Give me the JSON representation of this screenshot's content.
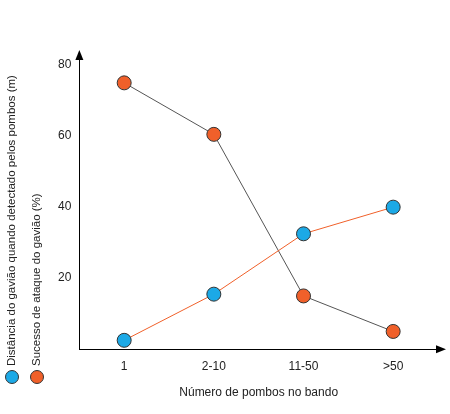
{
  "chart_data": {
    "type": "line",
    "x_label": "Número de pombos no bando",
    "categories": [
      "1",
      "2-10",
      "11-50",
      ">50"
    ],
    "series": [
      {
        "name": "Distância do gavião quando detectado pelos pombos (m)",
        "color": "#1ca9e6",
        "marker": "circle",
        "values": [
          2.5,
          15.5,
          32.5,
          40
        ]
      },
      {
        "name": "Sucesso de ataque do gavião (%)",
        "color": "#f0602a",
        "marker": "circle",
        "values": [
          75,
          60.5,
          15,
          5
        ]
      }
    ],
    "ylim": [
      0,
      82
    ],
    "yticks": [
      20,
      40,
      60,
      80
    ],
    "grid": false
  }
}
